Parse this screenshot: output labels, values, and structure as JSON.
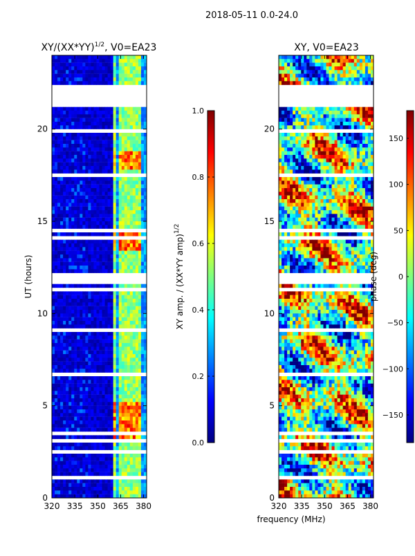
{
  "figure": {
    "suptitle": "2018-05-11 0.0-24.0",
    "xlabel": "frequency (MHz)"
  },
  "colors": {
    "background": "#ffffff",
    "jet": [
      "#00007f",
      "#0000ff",
      "#007fff",
      "#00ffff",
      "#7fff7f",
      "#ffff00",
      "#ff7f00",
      "#ff0000",
      "#7f0000"
    ]
  },
  "chart_data": [
    {
      "type": "heatmap",
      "title_prefix": "XY/(XX*YY)",
      "title_exponent": "1/2",
      "title_suffix": ", V0=EA23",
      "xlabel": "",
      "ylabel": "UT (hours)",
      "xlim": [
        320,
        382
      ],
      "ylim": [
        0,
        24
      ],
      "x_ticks": [
        320,
        335,
        350,
        365,
        380
      ],
      "y_ticks": [
        0,
        5,
        10,
        15,
        20
      ],
      "colorbar": {
        "label_prefix": "XY amp. / (XX*YY amp)",
        "label_exponent": "1/2",
        "range": [
          0.0,
          1.0
        ],
        "ticks": [
          "0.0",
          "0.2",
          "0.4",
          "0.6",
          "0.8",
          "1.0"
        ]
      },
      "bright_channels_mhz": [
        361,
        364,
        366,
        368,
        371,
        374,
        376,
        378
      ],
      "bright_periods_hours": [
        [
          3.2,
          5.2
        ],
        [
          13.4,
          14.4
        ],
        [
          17.8,
          18.8
        ]
      ],
      "flagged_hours": [
        [
          21.2,
          22.4
        ],
        [
          11.6,
          12.2
        ],
        [
          2.4,
          2.6
        ]
      ]
    },
    {
      "type": "heatmap",
      "title": "XY, V0=EA23",
      "xlabel": "",
      "ylabel": "",
      "xlim": [
        320,
        382
      ],
      "ylim": [
        0,
        24
      ],
      "x_ticks": [
        320,
        335,
        350,
        365,
        380
      ],
      "y_ticks": [
        0,
        5,
        10,
        15,
        20
      ],
      "colorbar": {
        "label": "phase (deg)",
        "range": [
          -180,
          180
        ],
        "ticks": [
          "150",
          "100",
          "50",
          "0",
          "−50",
          "−100",
          "−150"
        ]
      },
      "flagged_hours": [
        [
          21.2,
          22.4
        ],
        [
          11.6,
          12.2
        ],
        [
          2.4,
          2.6
        ]
      ]
    }
  ]
}
